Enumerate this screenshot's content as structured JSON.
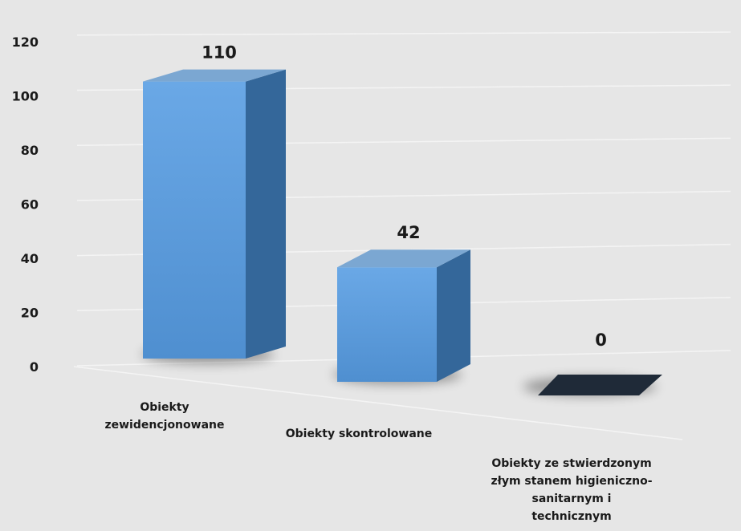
{
  "chart_data": {
    "type": "bar",
    "title": "",
    "xlabel": "",
    "ylabel": "",
    "categories": [
      [
        "Obiekty",
        "zewidencjonowane"
      ],
      [
        "Obiekty skontrolowane"
      ],
      [
        "Obiekty ze stwierdzonym",
        "złym stanem higieniczno-",
        "sanitarnym i",
        "technicznym"
      ]
    ],
    "values": [
      110,
      42,
      0
    ],
    "data_labels": [
      "110",
      "42",
      "0"
    ],
    "yticks": [
      "0",
      "20",
      "40",
      "60",
      "80",
      "100",
      "120"
    ],
    "ylim": [
      0,
      120
    ],
    "grid": true,
    "legend": "none",
    "colors": {
      "bar_front": "#5b9bd5",
      "bar_side": "#34679a",
      "bar_top": "#7ba7d2",
      "zero_bar": "#1f2a38",
      "grid": "#f4f4f4",
      "background": "#e6e6e6"
    }
  }
}
